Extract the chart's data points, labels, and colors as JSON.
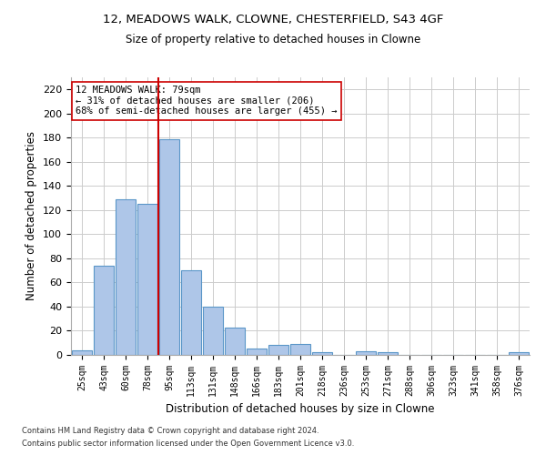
{
  "title1": "12, MEADOWS WALK, CLOWNE, CHESTERFIELD, S43 4GF",
  "title2": "Size of property relative to detached houses in Clowne",
  "xlabel": "Distribution of detached houses by size in Clowne",
  "ylabel": "Number of detached properties",
  "categories": [
    "25sqm",
    "43sqm",
    "60sqm",
    "78sqm",
    "95sqm",
    "113sqm",
    "131sqm",
    "148sqm",
    "166sqm",
    "183sqm",
    "201sqm",
    "218sqm",
    "236sqm",
    "253sqm",
    "271sqm",
    "288sqm",
    "306sqm",
    "323sqm",
    "341sqm",
    "358sqm",
    "376sqm"
  ],
  "values": [
    4,
    74,
    129,
    125,
    179,
    70,
    40,
    23,
    5,
    8,
    9,
    2,
    0,
    3,
    2,
    0,
    0,
    0,
    0,
    0,
    2
  ],
  "bar_color": "#aec6e8",
  "bar_edge_color": "#5a96c8",
  "property_line_x": 3.5,
  "property_line_color": "#cc0000",
  "annotation_text": "12 MEADOWS WALK: 79sqm\n← 31% of detached houses are smaller (206)\n68% of semi-detached houses are larger (455) →",
  "annotation_box_color": "#ffffff",
  "annotation_box_edge": "#cc0000",
  "ylim": [
    0,
    230
  ],
  "yticks": [
    0,
    20,
    40,
    60,
    80,
    100,
    120,
    140,
    160,
    180,
    200,
    220
  ],
  "footnote1": "Contains HM Land Registry data © Crown copyright and database right 2024.",
  "footnote2": "Contains public sector information licensed under the Open Government Licence v3.0.",
  "background_color": "#ffffff",
  "grid_color": "#cccccc"
}
